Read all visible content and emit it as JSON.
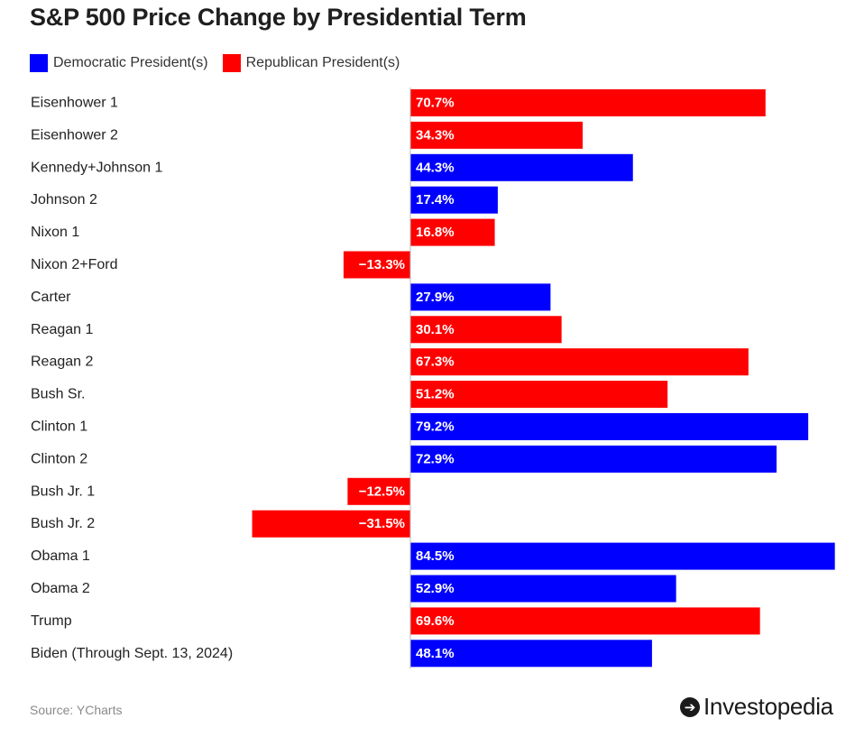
{
  "title": "S&P 500 Price Change by Presidential Term",
  "legend": {
    "items": [
      {
        "label": "Democratic President(s)",
        "color": "#0000ff"
      },
      {
        "label": "Republican President(s)",
        "color": "#ff0000"
      }
    ]
  },
  "source": "Source: YCharts",
  "brand": {
    "name": "Investopedia",
    "icon": "investopedia-logo-icon"
  },
  "chart_data": {
    "type": "bar",
    "orientation": "horizontal",
    "title": "S&P 500 Price Change by Presidential Term",
    "unit": "%",
    "xlim": [
      -40,
      85
    ],
    "grid": false,
    "legend_position": "top-left",
    "categories": [
      "Eisenhower 1",
      "Eisenhower 2",
      "Kennedy+Johnson 1",
      "Johnson 2",
      "Nixon 1",
      "Nixon 2+Ford",
      "Carter",
      "Reagan 1",
      "Reagan 2",
      "Bush Sr.",
      "Clinton 1",
      "Clinton 2",
      "Bush Jr. 1",
      "Bush Jr. 2",
      "Obama 1",
      "Obama 2",
      "Trump",
      "Biden (Through Sept. 13, 2024)"
    ],
    "values": [
      70.7,
      34.3,
      44.3,
      17.4,
      16.8,
      -13.3,
      27.9,
      30.1,
      67.3,
      51.2,
      79.2,
      72.9,
      -12.5,
      -31.5,
      84.5,
      52.9,
      69.6,
      48.1
    ],
    "value_labels": [
      "70.7%",
      "34.3%",
      "44.3%",
      "17.4%",
      "16.8%",
      "−13.3%",
      "27.9%",
      "30.1%",
      "67.3%",
      "51.2%",
      "79.2%",
      "72.9%",
      "−12.5%",
      "−31.5%",
      "84.5%",
      "52.9%",
      "69.6%",
      "48.1%"
    ],
    "party": [
      "Republican",
      "Republican",
      "Democratic",
      "Democratic",
      "Republican",
      "Republican",
      "Democratic",
      "Republican",
      "Republican",
      "Republican",
      "Democratic",
      "Democratic",
      "Republican",
      "Republican",
      "Democratic",
      "Democratic",
      "Republican",
      "Democratic"
    ],
    "colors": {
      "Democratic": "#0000ff",
      "Republican": "#ff0000"
    }
  }
}
